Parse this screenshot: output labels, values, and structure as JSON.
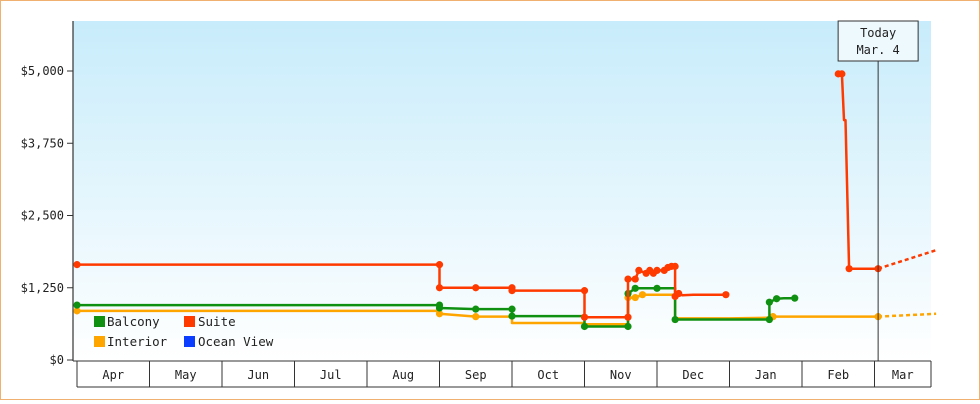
{
  "chart_data": {
    "type": "line",
    "yticks": [
      "$0",
      "$1,250",
      "$2,500",
      "$3,750",
      "$5,000"
    ],
    "ytick_values": [
      0,
      1250,
      2500,
      3750,
      5000
    ],
    "ylim": [
      0,
      5500
    ],
    "months": [
      "Apr",
      "May",
      "Jun",
      "Jul",
      "Aug",
      "Sep",
      "Oct",
      "Nov",
      "Dec",
      "Jan",
      "Feb",
      "Mar"
    ],
    "today_label_line1": "Today",
    "today_label_line2": "Mar. 4",
    "today_month_pos": 11.05,
    "legend": [
      {
        "name": "Balcony",
        "color": "#109010"
      },
      {
        "name": "Suite",
        "color": "#ff3a00"
      },
      {
        "name": "Interior",
        "color": "#ffa500"
      },
      {
        "name": "Ocean View",
        "color": "#0a3dff"
      }
    ],
    "series": [
      {
        "name": "Suite",
        "color": "#ff3a00",
        "points": [
          [
            0.0,
            1650
          ],
          [
            5.0,
            1650
          ],
          [
            5.0,
            1250
          ],
          [
            5.5,
            1250
          ],
          [
            6.0,
            1250
          ],
          [
            6.0,
            1200
          ],
          [
            7.0,
            1200
          ],
          [
            7.0,
            740
          ],
          [
            7.6,
            740
          ],
          [
            7.6,
            1400
          ],
          [
            7.7,
            1400
          ],
          [
            7.75,
            1550
          ],
          [
            7.85,
            1500
          ],
          [
            7.9,
            1550
          ],
          [
            7.95,
            1500
          ],
          [
            8.0,
            1550
          ],
          [
            8.1,
            1550
          ],
          [
            8.15,
            1600
          ],
          [
            8.2,
            1620
          ],
          [
            8.25,
            1620
          ],
          [
            8.25,
            1100
          ],
          [
            8.3,
            1150
          ],
          [
            8.35,
            1120
          ],
          [
            8.5,
            1130
          ],
          [
            8.95,
            1130
          ]
        ],
        "marker_points": [
          [
            0.0,
            1650
          ],
          [
            5.0,
            1650
          ],
          [
            5.0,
            1250
          ],
          [
            5.5,
            1250
          ],
          [
            6.0,
            1250
          ],
          [
            6.0,
            1200
          ],
          [
            7.0,
            1200
          ],
          [
            7.0,
            740
          ],
          [
            7.6,
            740
          ],
          [
            7.6,
            1400
          ],
          [
            7.7,
            1400
          ],
          [
            7.75,
            1550
          ],
          [
            7.85,
            1500
          ],
          [
            7.9,
            1550
          ],
          [
            7.95,
            1500
          ],
          [
            8.0,
            1550
          ],
          [
            8.1,
            1550
          ],
          [
            8.15,
            1600
          ],
          [
            8.2,
            1620
          ],
          [
            8.25,
            1620
          ],
          [
            8.25,
            1100
          ],
          [
            8.3,
            1150
          ],
          [
            8.95,
            1130
          ]
        ],
        "points2": [
          [
            10.5,
            4950
          ],
          [
            10.55,
            4950
          ],
          [
            10.58,
            4150
          ],
          [
            10.6,
            4150
          ],
          [
            10.65,
            1580
          ],
          [
            11.05,
            1580
          ]
        ],
        "marker_points2": [
          [
            10.5,
            4950
          ],
          [
            10.55,
            4950
          ],
          [
            10.65,
            1580
          ],
          [
            11.05,
            1580
          ]
        ],
        "projection": [
          [
            11.05,
            1580
          ],
          [
            11.85,
            1900
          ]
        ]
      },
      {
        "name": "Balcony",
        "color": "#109010",
        "points": [
          [
            0.0,
            950
          ],
          [
            5.0,
            950
          ],
          [
            5.0,
            900
          ],
          [
            5.5,
            880
          ],
          [
            6.0,
            880
          ],
          [
            6.0,
            760
          ],
          [
            7.0,
            760
          ],
          [
            7.0,
            580
          ],
          [
            7.6,
            580
          ],
          [
            7.6,
            1150
          ],
          [
            7.7,
            1240
          ],
          [
            8.0,
            1240
          ],
          [
            8.25,
            1240
          ],
          [
            8.25,
            700
          ],
          [
            9.0,
            700
          ],
          [
            9.5,
            700
          ],
          [
            9.55,
            700
          ],
          [
            9.55,
            1000
          ],
          [
            9.65,
            1060
          ],
          [
            9.75,
            1070
          ],
          [
            9.9,
            1070
          ]
        ],
        "marker_points": [
          [
            0.0,
            950
          ],
          [
            5.0,
            950
          ],
          [
            5.0,
            900
          ],
          [
            5.5,
            880
          ],
          [
            6.0,
            880
          ],
          [
            6.0,
            760
          ],
          [
            7.0,
            580
          ],
          [
            7.6,
            580
          ],
          [
            7.6,
            1150
          ],
          [
            7.7,
            1240
          ],
          [
            8.0,
            1240
          ],
          [
            8.25,
            700
          ],
          [
            9.55,
            700
          ],
          [
            9.55,
            1000
          ],
          [
            9.65,
            1060
          ],
          [
            9.9,
            1070
          ]
        ]
      },
      {
        "name": "Interior",
        "color": "#ffa500",
        "points": [
          [
            0.0,
            850
          ],
          [
            5.0,
            850
          ],
          [
            5.0,
            800
          ],
          [
            5.5,
            750
          ],
          [
            6.0,
            750
          ],
          [
            6.0,
            640
          ],
          [
            7.0,
            640
          ],
          [
            7.0,
            620
          ],
          [
            7.6,
            620
          ],
          [
            7.6,
            1080
          ],
          [
            7.7,
            1080
          ],
          [
            7.8,
            1130
          ],
          [
            8.0,
            1130
          ],
          [
            8.25,
            1130
          ],
          [
            8.25,
            720
          ],
          [
            9.0,
            720
          ],
          [
            9.5,
            730
          ],
          [
            9.6,
            750
          ],
          [
            11.05,
            750
          ]
        ],
        "marker_points": [
          [
            0.0,
            850
          ],
          [
            5.0,
            800
          ],
          [
            5.5,
            750
          ],
          [
            7.6,
            1080
          ],
          [
            7.7,
            1080
          ],
          [
            7.8,
            1130
          ],
          [
            9.6,
            750
          ],
          [
            11.05,
            750
          ]
        ],
        "projection": [
          [
            11.05,
            750
          ],
          [
            11.85,
            800
          ]
        ]
      }
    ]
  }
}
